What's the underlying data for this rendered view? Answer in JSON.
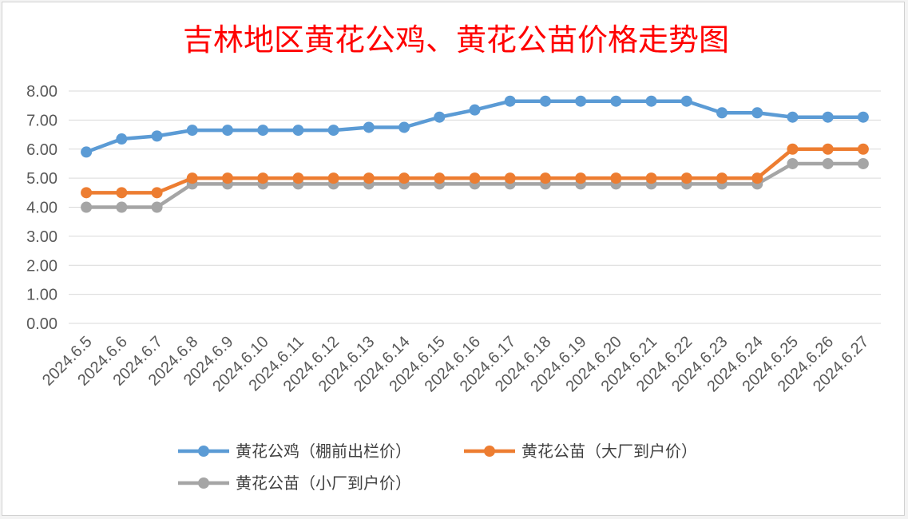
{
  "chart_data": {
    "type": "line",
    "title": "吉林地区黄花公鸡、黄花公苗价格走势图",
    "xlabel": "",
    "ylabel": "",
    "ylim": [
      0,
      8
    ],
    "yticks": [
      "0.00",
      "1.00",
      "2.00",
      "3.00",
      "4.00",
      "5.00",
      "6.00",
      "7.00",
      "8.00"
    ],
    "grid": true,
    "legend_position": "bottom",
    "categories": [
      "2024.6.5",
      "2024.6.6",
      "2024.6.7",
      "2024.6.8",
      "2024.6.9",
      "2024.6.10",
      "2024.6.11",
      "2024.6.12",
      "2024.6.13",
      "2024.6.14",
      "2024.6.15",
      "2024.6.16",
      "2024.6.17",
      "2024.6.18",
      "2024.6.19",
      "2024.6.20",
      "2024.6.21",
      "2024.6.22",
      "2024.6.23",
      "2024.6.24",
      "2024.6.25",
      "2024.6.26",
      "2024.6.27"
    ],
    "series": [
      {
        "name": "黄花公鸡（棚前出栏价）",
        "color": "#5b9bd5",
        "values": [
          5.9,
          6.35,
          6.45,
          6.65,
          6.65,
          6.65,
          6.65,
          6.65,
          6.75,
          6.75,
          7.1,
          7.35,
          7.65,
          7.65,
          7.65,
          7.65,
          7.65,
          7.65,
          7.25,
          7.25,
          7.1,
          7.1,
          7.1
        ]
      },
      {
        "name": "黄花公苗（大厂到户价）",
        "color": "#ed7d31",
        "values": [
          4.5,
          4.5,
          4.5,
          5.0,
          5.0,
          5.0,
          5.0,
          5.0,
          5.0,
          5.0,
          5.0,
          5.0,
          5.0,
          5.0,
          5.0,
          5.0,
          5.0,
          5.0,
          5.0,
          5.0,
          6.0,
          6.0,
          6.0
        ]
      },
      {
        "name": "黄花公苗（小厂到户价）",
        "color": "#a5a5a5",
        "values": [
          4.0,
          4.0,
          4.0,
          4.8,
          4.8,
          4.8,
          4.8,
          4.8,
          4.8,
          4.8,
          4.8,
          4.8,
          4.8,
          4.8,
          4.8,
          4.8,
          4.8,
          4.8,
          4.8,
          4.8,
          5.5,
          5.5,
          5.5
        ]
      }
    ]
  }
}
